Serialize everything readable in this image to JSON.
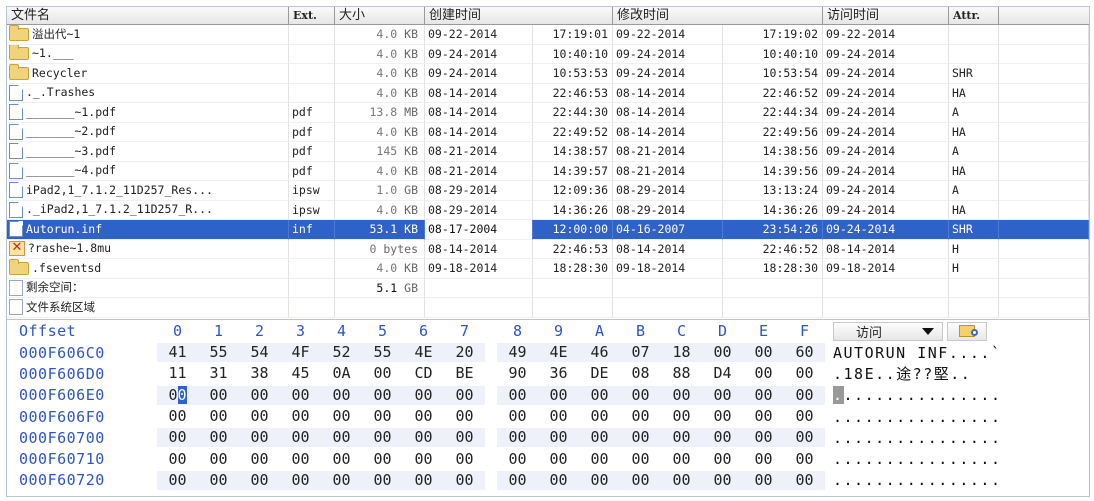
{
  "file_list": {
    "columns": {
      "name": "文件名",
      "ext": "Ext.",
      "size": "大小",
      "created": "创建时间",
      "modified": "修改时间",
      "accessed": "访问时间",
      "attr": "Attr."
    },
    "rows": [
      {
        "icon": "folder",
        "name": "溢出代~1",
        "ext": "",
        "size_num": "4.0",
        "size_unit": "KB",
        "c_date": "09-22-2014",
        "c_time": "17:19:01",
        "m_date": "09-22-2014",
        "m_time": "17:19:02",
        "a_date": "09-22-2014",
        "attr": ""
      },
      {
        "icon": "folder",
        "name": "~1.___",
        "ext": "",
        "size_num": "4.0",
        "size_unit": "KB",
        "c_date": "09-24-2014",
        "c_time": "10:40:10",
        "m_date": "09-24-2014",
        "m_time": "10:40:10",
        "a_date": "09-24-2014",
        "attr": ""
      },
      {
        "icon": "folder",
        "name": "Recycler",
        "ext": "",
        "size_num": "4.0",
        "size_unit": "KB",
        "c_date": "09-24-2014",
        "c_time": "10:53:53",
        "m_date": "09-24-2014",
        "m_time": "10:53:54",
        "a_date": "09-24-2014",
        "attr": "SHR"
      },
      {
        "icon": "file",
        "name": "._.Trashes",
        "ext": "",
        "size_num": "4.0",
        "size_unit": "KB",
        "c_date": "08-14-2014",
        "c_time": "22:46:53",
        "m_date": "08-14-2014",
        "m_time": "22:46:52",
        "a_date": "09-24-2014",
        "attr": "HA"
      },
      {
        "icon": "file",
        "name": "_______~1.pdf",
        "ext": "pdf",
        "size_num": "13.8",
        "size_unit": "MB",
        "c_date": "08-14-2014",
        "c_time": "22:44:30",
        "m_date": "08-14-2014",
        "m_time": "22:44:34",
        "a_date": "09-24-2014",
        "attr": "A"
      },
      {
        "icon": "file",
        "name": "_______~2.pdf",
        "ext": "pdf",
        "size_num": "4.0",
        "size_unit": "KB",
        "c_date": "08-14-2014",
        "c_time": "22:49:52",
        "m_date": "08-14-2014",
        "m_time": "22:49:56",
        "a_date": "09-24-2014",
        "attr": "HA"
      },
      {
        "icon": "file",
        "name": "_______~3.pdf",
        "ext": "pdf",
        "size_num": "145",
        "size_unit": "KB",
        "c_date": "08-21-2014",
        "c_time": "14:38:57",
        "m_date": "08-21-2014",
        "m_time": "14:38:56",
        "a_date": "09-24-2014",
        "attr": "A"
      },
      {
        "icon": "file",
        "name": "_______~4.pdf",
        "ext": "pdf",
        "size_num": "4.0",
        "size_unit": "KB",
        "c_date": "08-21-2014",
        "c_time": "14:39:57",
        "m_date": "08-21-2014",
        "m_time": "14:39:56",
        "a_date": "09-24-2014",
        "attr": "HA"
      },
      {
        "icon": "file",
        "name": "iPad2,1_7.1.2_11D257_Res...",
        "ext": "ipsw",
        "size_num": "1.0",
        "size_unit": "GB",
        "c_date": "08-29-2014",
        "c_time": "12:09:36",
        "m_date": "08-29-2014",
        "m_time": "13:13:24",
        "a_date": "09-24-2014",
        "attr": "A"
      },
      {
        "icon": "file",
        "name": "._iPad2,1_7.1.2_11D257_R...",
        "ext": "ipsw",
        "size_num": "4.0",
        "size_unit": "KB",
        "c_date": "08-29-2014",
        "c_time": "14:36:26",
        "m_date": "08-29-2014",
        "m_time": "14:36:26",
        "a_date": "09-24-2014",
        "attr": "HA"
      },
      {
        "icon": "file",
        "name": "Autorun.inf",
        "ext": "inf",
        "size_num": "53.1",
        "size_unit": "KB",
        "c_date": "08-17-2004",
        "c_time": "12:00:00",
        "m_date": "04-16-2007",
        "m_time": "23:54:26",
        "a_date": "09-24-2014",
        "attr": "SHR",
        "selected": true
      },
      {
        "icon": "deleted",
        "name": "?rashe~1.8mu",
        "ext": "",
        "size_num": "0",
        "size_unit": "bytes",
        "c_date": "08-14-2014",
        "c_time": "22:46:53",
        "m_date": "08-14-2014",
        "m_time": "22:46:52",
        "a_date": "08-14-2014",
        "attr": "H"
      },
      {
        "icon": "folder",
        "name": ".fseventsd",
        "ext": "",
        "size_num": "4.0",
        "size_unit": "KB",
        "c_date": "09-18-2014",
        "c_time": "18:28:30",
        "m_date": "09-18-2014",
        "m_time": "18:28:30",
        "a_date": "09-18-2014",
        "attr": "H"
      },
      {
        "icon": "info",
        "name": "剩余空间：",
        "ext": "",
        "size_num": "5.1",
        "size_unit": "GB",
        "size_strong": true,
        "c_date": "",
        "c_time": "",
        "m_date": "",
        "m_time": "",
        "a_date": "",
        "attr": ""
      },
      {
        "icon": "info",
        "name": "文件系统区域",
        "ext": "",
        "size_num": "",
        "size_unit": "",
        "c_date": "",
        "c_time": "",
        "m_date": "",
        "m_time": "",
        "a_date": "",
        "attr": ""
      }
    ]
  },
  "hex_view": {
    "offset_label": "Offset",
    "column_headers": [
      "0",
      "1",
      "2",
      "3",
      "4",
      "5",
      "6",
      "7",
      "8",
      "9",
      "A",
      "B",
      "C",
      "D",
      "E",
      "F"
    ],
    "access_dropdown": "访问",
    "rows": [
      {
        "offset": "000F606C0",
        "bytes": [
          "41",
          "55",
          "54",
          "4F",
          "52",
          "55",
          "4E",
          "20",
          "49",
          "4E",
          "46",
          "07",
          "18",
          "00",
          "00",
          "60"
        ],
        "ascii": "AUTORUN INF....`"
      },
      {
        "offset": "000F606D0",
        "bytes": [
          "11",
          "31",
          "38",
          "45",
          "0A",
          "00",
          "CD",
          "BE",
          "90",
          "36",
          "DE",
          "08",
          "88",
          "D4",
          "00",
          "00"
        ],
        "ascii": ".18E..途??堅.."
      },
      {
        "offset": "000F606E0",
        "bytes": [
          "00",
          "00",
          "00",
          "00",
          "00",
          "00",
          "00",
          "00",
          "00",
          "00",
          "00",
          "00",
          "00",
          "00",
          "00",
          "00"
        ],
        "ascii": "................",
        "cursor": true
      },
      {
        "offset": "000F606F0",
        "bytes": [
          "00",
          "00",
          "00",
          "00",
          "00",
          "00",
          "00",
          "00",
          "00",
          "00",
          "00",
          "00",
          "00",
          "00",
          "00",
          "00"
        ],
        "ascii": "................"
      },
      {
        "offset": "000F60700",
        "bytes": [
          "00",
          "00",
          "00",
          "00",
          "00",
          "00",
          "00",
          "00",
          "00",
          "00",
          "00",
          "00",
          "00",
          "00",
          "00",
          "00"
        ],
        "ascii": "................"
      },
      {
        "offset": "000F60710",
        "bytes": [
          "00",
          "00",
          "00",
          "00",
          "00",
          "00",
          "00",
          "00",
          "00",
          "00",
          "00",
          "00",
          "00",
          "00",
          "00",
          "00"
        ],
        "ascii": "................"
      },
      {
        "offset": "000F60720",
        "bytes": [
          "00",
          "00",
          "00",
          "00",
          "00",
          "00",
          "00",
          "00",
          "00",
          "00",
          "00",
          "00",
          "00",
          "00",
          "00",
          "00"
        ],
        "ascii": "................"
      }
    ]
  }
}
